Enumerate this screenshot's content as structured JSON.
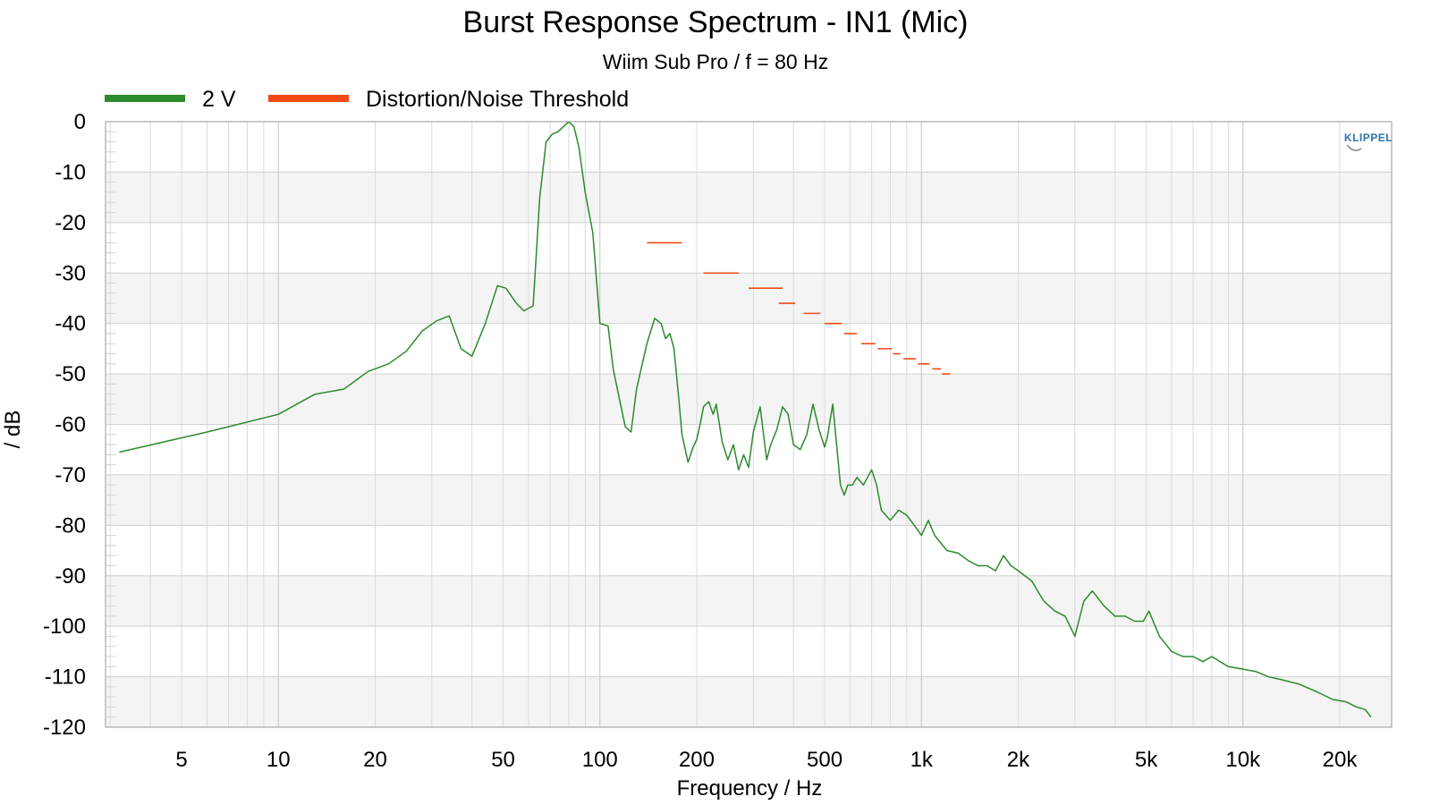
{
  "chart_data": {
    "type": "line",
    "title": "Burst Response Spectrum - IN1 (Mic)",
    "subtitle": "Wiim Sub Pro / f = 80 Hz",
    "xlabel": "Frequency / Hz",
    "ylabel": "/ dB",
    "x_scale": "log",
    "xlim": [
      2.9,
      29000
    ],
    "ylim": [
      -120,
      0
    ],
    "x_ticks": [
      {
        "value": 5,
        "label": "5"
      },
      {
        "value": 10,
        "label": "10"
      },
      {
        "value": 20,
        "label": "20"
      },
      {
        "value": 50,
        "label": "50"
      },
      {
        "value": 100,
        "label": "100"
      },
      {
        "value": 200,
        "label": "200"
      },
      {
        "value": 500,
        "label": "500"
      },
      {
        "value": 1000,
        "label": "1k"
      },
      {
        "value": 2000,
        "label": "2k"
      },
      {
        "value": 5000,
        "label": "5k"
      },
      {
        "value": 10000,
        "label": "10k"
      },
      {
        "value": 20000,
        "label": "20k"
      }
    ],
    "y_ticks": [
      0,
      -10,
      -20,
      -30,
      -40,
      -50,
      -60,
      -70,
      -80,
      -90,
      -100,
      -110,
      -120
    ],
    "grid": true,
    "legend_position": "top-left",
    "logo": "KLIPPEL",
    "series": [
      {
        "name": "2 V",
        "color": "#2b8a2b",
        "x": [
          3.2,
          6,
          10,
          13,
          16,
          19,
          22,
          25,
          28,
          31,
          34,
          37,
          40,
          44,
          48,
          51,
          55,
          58,
          62,
          65,
          68,
          71,
          74,
          77,
          80,
          83,
          86,
          90,
          95,
          100,
          106,
          110,
          115,
          120,
          125,
          130,
          140,
          148,
          155,
          160,
          165,
          170,
          176,
          180,
          188,
          195,
          200,
          205,
          210,
          218,
          225,
          230,
          240,
          250,
          260,
          270,
          280,
          290,
          300,
          315,
          330,
          340,
          355,
          370,
          385,
          400,
          420,
          440,
          460,
          480,
          500,
          510,
          530,
          560,
          575,
          590,
          610,
          630,
          660,
          700,
          725,
          750,
          800,
          850,
          900,
          950,
          1000,
          1050,
          1100,
          1200,
          1300,
          1400,
          1500,
          1600,
          1700,
          1800,
          1900,
          2000,
          2200,
          2400,
          2600,
          2800,
          3000,
          3200,
          3400,
          3700,
          4000,
          4300,
          4600,
          4900,
          5100,
          5500,
          6000,
          6500,
          7000,
          7500,
          8000,
          9000,
          10000,
          11000,
          12000,
          13000,
          15000,
          17000,
          19000,
          21000,
          22500,
          24000,
          25000
        ],
        "y": [
          -65.5,
          -61.5,
          -58,
          -54,
          -53,
          -49.5,
          -48,
          -45.5,
          -41.5,
          -39.5,
          -38.5,
          -45,
          -46.5,
          -40,
          -32.5,
          -33,
          -36,
          -37.5,
          -36.5,
          -15,
          -4,
          -2.5,
          -2,
          -1,
          0,
          -1,
          -5,
          -14,
          -22,
          -40,
          -40.5,
          -49,
          -55,
          -60.5,
          -61.5,
          -53,
          -44,
          -39,
          -40,
          -43,
          -42,
          -45,
          -55,
          -62,
          -67.5,
          -64.5,
          -63,
          -60,
          -56.5,
          -55.5,
          -58,
          -56,
          -63.5,
          -67,
          -64,
          -69,
          -66,
          -68.5,
          -61.5,
          -56.5,
          -67,
          -64,
          -61,
          -56.5,
          -58,
          -64,
          -65,
          -62,
          -56,
          -61,
          -64.5,
          -62.5,
          -56,
          -72,
          -74,
          -72,
          -72,
          -70.5,
          -72,
          -69,
          -72,
          -77,
          -79,
          -77,
          -78,
          -80,
          -82,
          -79,
          -82,
          -85,
          -85.5,
          -87,
          -88,
          -88,
          -89,
          -86,
          -88,
          -89,
          -91,
          -95,
          -97,
          -98,
          -102,
          -95,
          -93,
          -96,
          -98,
          -98,
          -99,
          -99,
          -97,
          -102,
          -105,
          -106,
          -106,
          -107,
          -106,
          -108,
          -108.5,
          -109,
          -110,
          -110.5,
          -111.5,
          -113,
          -114.5,
          -115,
          -116,
          -116.5,
          -118
        ]
      },
      {
        "name": "Distortion/Noise Threshold",
        "color": "#f04a14",
        "segments": [
          {
            "x": [
              140,
              180
            ],
            "y": -24
          },
          {
            "x": [
              210,
              270
            ],
            "y": -30
          },
          {
            "x": [
              290,
              370
            ],
            "y": -33
          },
          {
            "x": [
              360,
              405
            ],
            "y": -36
          },
          {
            "x": [
              430,
              485
            ],
            "y": -38
          },
          {
            "x": [
              500,
              565
            ],
            "y": -40
          },
          {
            "x": [
              575,
              630
            ],
            "y": -42
          },
          {
            "x": [
              650,
              720
            ],
            "y": -44
          },
          {
            "x": [
              730,
              810
            ],
            "y": -45
          },
          {
            "x": [
              815,
              860
            ],
            "y": -46
          },
          {
            "x": [
              880,
              960
            ],
            "y": -47
          },
          {
            "x": [
              975,
              1060
            ],
            "y": -48
          },
          {
            "x": [
              1080,
              1150
            ],
            "y": -49
          },
          {
            "x": [
              1160,
              1230
            ],
            "y": -50
          }
        ]
      }
    ]
  }
}
